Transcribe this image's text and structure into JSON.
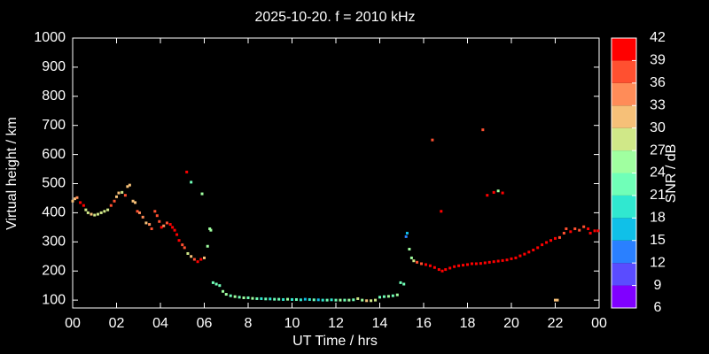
{
  "chart_data": {
    "type": "scatter",
    "title": "2025-10-20. f = 2010 kHz",
    "xlabel": "UT Time / hrs",
    "ylabel": "Virtual height / km",
    "xlim": [
      0,
      24
    ],
    "xticks": [
      {
        "value": 0,
        "label": "00"
      },
      {
        "value": 2,
        "label": "02"
      },
      {
        "value": 4,
        "label": "04"
      },
      {
        "value": 6,
        "label": "06"
      },
      8,
      10,
      12,
      14,
      16,
      18,
      20,
      22,
      {
        "value": 24,
        "label": "00"
      }
    ],
    "ylim": [
      73,
      1000
    ],
    "yticks": [
      100,
      200,
      300,
      400,
      500,
      600,
      700,
      800,
      900,
      1000
    ],
    "colorbar": {
      "label": "SNR / dB",
      "lim": [
        6,
        42
      ],
      "ticks": [
        6,
        9,
        12,
        15,
        18,
        21,
        24,
        27,
        30,
        33,
        36,
        39,
        42
      ],
      "colors": [
        "#8000ff",
        "#5a4cff",
        "#2a80ff",
        "#10c0e8",
        "#30e8d0",
        "#70ffb8",
        "#a0ffa0",
        "#d0e888",
        "#f6c078",
        "#ff8c58",
        "#ff5030",
        "#ff0000"
      ]
    },
    "x": [
      0.0,
      0.1,
      0.2,
      0.35,
      0.5,
      0.6,
      0.7,
      0.85,
      1.0,
      1.15,
      1.3,
      1.45,
      1.6,
      1.75,
      1.9,
      2.0,
      2.1,
      2.25,
      2.4,
      2.5,
      2.6,
      2.75,
      2.85,
      2.95,
      3.05,
      3.2,
      3.35,
      3.5,
      3.6,
      3.75,
      3.85,
      3.95,
      4.05,
      4.15,
      4.3,
      4.45,
      4.55,
      4.65,
      4.75,
      4.85,
      5.0,
      5.1,
      5.25,
      5.4,
      5.55,
      5.7,
      5.85,
      6.0,
      6.15,
      6.25,
      6.3,
      6.4,
      6.55,
      6.7,
      6.85,
      7.0,
      7.2,
      7.4,
      7.6,
      7.8,
      8.0,
      8.2,
      8.4,
      8.6,
      8.8,
      9.0,
      9.2,
      9.4,
      9.6,
      9.8,
      10.0,
      10.2,
      10.4,
      10.6,
      10.8,
      11.0,
      11.2,
      11.4,
      11.6,
      11.8,
      12.0,
      12.2,
      12.4,
      12.6,
      12.8,
      13.0,
      13.2,
      13.4,
      13.6,
      13.8,
      14.0,
      14.2,
      14.4,
      14.6,
      14.8,
      14.95,
      15.1,
      15.2,
      15.25,
      15.35,
      15.45,
      15.55,
      15.7,
      15.9,
      16.1,
      16.3,
      16.5,
      16.7,
      16.85,
      17.0,
      17.2,
      17.4,
      17.6,
      17.8,
      18.0,
      18.2,
      18.4,
      18.6,
      18.8,
      19.0,
      19.2,
      19.4,
      19.6,
      19.8,
      20.0,
      20.2,
      20.4,
      20.6,
      20.8,
      21.0,
      21.2,
      21.4,
      21.6,
      21.8,
      22.0,
      22.2,
      22.4,
      22.5,
      22.7,
      22.9,
      23.1,
      23.3,
      23.5,
      23.6,
      23.8,
      23.95,
      5.2,
      5.4,
      5.9,
      16.4,
      16.8,
      18.7,
      18.9,
      19.2,
      19.4,
      19.6,
      22.0,
      22.1
    ],
    "y": [
      440,
      448,
      452,
      435,
      425,
      410,
      400,
      395,
      392,
      395,
      400,
      405,
      410,
      425,
      440,
      455,
      468,
      470,
      460,
      490,
      495,
      440,
      435,
      405,
      400,
      385,
      365,
      360,
      345,
      405,
      390,
      370,
      350,
      355,
      365,
      360,
      350,
      340,
      325,
      305,
      290,
      280,
      260,
      250,
      240,
      232,
      240,
      245,
      285,
      345,
      340,
      160,
      155,
      150,
      130,
      120,
      115,
      112,
      110,
      108,
      108,
      106,
      105,
      105,
      104,
      104,
      103,
      103,
      102,
      103,
      102,
      102,
      101,
      103,
      102,
      101,
      101,
      100,
      100,
      101,
      100,
      100,
      100,
      100,
      101,
      105,
      100,
      98,
      98,
      100,
      110,
      112,
      113,
      115,
      118,
      160,
      155,
      318,
      330,
      275,
      245,
      235,
      230,
      225,
      222,
      218,
      212,
      205,
      200,
      205,
      210,
      215,
      218,
      220,
      222,
      225,
      225,
      226,
      228,
      230,
      232,
      234,
      236,
      238,
      242,
      245,
      252,
      258,
      265,
      272,
      280,
      290,
      298,
      305,
      312,
      315,
      330,
      345,
      335,
      345,
      340,
      352,
      345,
      330,
      338,
      338,
      540,
      505,
      465,
      650,
      405,
      685,
      460,
      470,
      475,
      468,
      100,
      100
    ],
    "snr": [
      30,
      30,
      33,
      39,
      39,
      27,
      27,
      30,
      27,
      27,
      27,
      27,
      27,
      36,
      36,
      30,
      30,
      27,
      36,
      30,
      30,
      30,
      30,
      36,
      33,
      33,
      30,
      33,
      36,
      36,
      36,
      36,
      39,
      33,
      36,
      39,
      39,
      39,
      39,
      39,
      36,
      36,
      27,
      30,
      36,
      39,
      39,
      30,
      24,
      24,
      24,
      21,
      21,
      21,
      24,
      24,
      21,
      24,
      21,
      24,
      21,
      24,
      21,
      18,
      21,
      18,
      21,
      21,
      18,
      24,
      18,
      21,
      18,
      15,
      18,
      21,
      15,
      18,
      21,
      18,
      21,
      24,
      21,
      24,
      21,
      27,
      24,
      30,
      27,
      27,
      21,
      21,
      24,
      21,
      24,
      21,
      21,
      12,
      15,
      24,
      24,
      27,
      36,
      36,
      39,
      39,
      39,
      39,
      39,
      39,
      39,
      39,
      39,
      39,
      39,
      39,
      39,
      39,
      39,
      39,
      39,
      39,
      39,
      39,
      39,
      39,
      39,
      39,
      39,
      39,
      39,
      39,
      39,
      39,
      39,
      36,
      36,
      36,
      39,
      36,
      36,
      36,
      39,
      39,
      39,
      39,
      39,
      21,
      24,
      36,
      39,
      36,
      39,
      39,
      24,
      39,
      30,
      30
    ]
  }
}
